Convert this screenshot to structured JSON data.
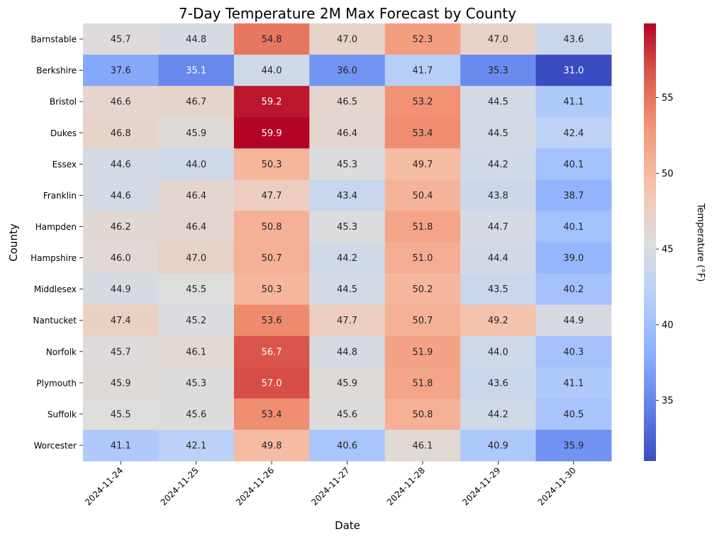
{
  "chart_data": {
    "type": "heatmap",
    "title": "7-Day Temperature 2M Max Forecast by County",
    "xlabel": "Date",
    "ylabel": "County",
    "colorbar_label": "Temperature (°F)",
    "colormap": "coolwarm",
    "value_range": [
      31.0,
      59.9
    ],
    "colorbar_ticks": [
      35,
      40,
      45,
      50,
      55
    ],
    "x": [
      "2024-11-24",
      "2024-11-25",
      "2024-11-26",
      "2024-11-27",
      "2024-11-28",
      "2024-11-29",
      "2024-11-30"
    ],
    "y": [
      "Barnstable",
      "Berkshire",
      "Bristol",
      "Dukes",
      "Essex",
      "Franklin",
      "Hampden",
      "Hampshire",
      "Middlesex",
      "Nantucket",
      "Norfolk",
      "Plymouth",
      "Suffolk",
      "Worcester"
    ],
    "values": [
      [
        45.7,
        44.8,
        54.8,
        47.0,
        52.3,
        47.0,
        43.6
      ],
      [
        37.6,
        35.1,
        44.0,
        36.0,
        41.7,
        35.3,
        31.0
      ],
      [
        46.6,
        46.7,
        59.2,
        46.5,
        53.2,
        44.5,
        41.1
      ],
      [
        46.8,
        45.9,
        59.9,
        46.4,
        53.4,
        44.5,
        42.4
      ],
      [
        44.6,
        44.0,
        50.3,
        45.3,
        49.7,
        44.2,
        40.1
      ],
      [
        44.6,
        46.4,
        47.7,
        43.4,
        50.4,
        43.8,
        38.7
      ],
      [
        46.2,
        46.4,
        50.8,
        45.3,
        51.8,
        44.7,
        40.1
      ],
      [
        46.0,
        47.0,
        50.7,
        44.2,
        51.0,
        44.4,
        39.0
      ],
      [
        44.9,
        45.5,
        50.3,
        44.5,
        50.2,
        43.5,
        40.2
      ],
      [
        47.4,
        45.2,
        53.6,
        47.7,
        50.7,
        49.2,
        44.9
      ],
      [
        45.7,
        46.1,
        56.7,
        44.8,
        51.9,
        44.0,
        40.3
      ],
      [
        45.9,
        45.3,
        57.0,
        45.9,
        51.8,
        43.6,
        41.1
      ],
      [
        45.5,
        45.6,
        53.4,
        45.6,
        50.8,
        44.2,
        40.5
      ],
      [
        41.1,
        42.1,
        49.8,
        40.6,
        46.1,
        40.9,
        35.9
      ]
    ]
  }
}
